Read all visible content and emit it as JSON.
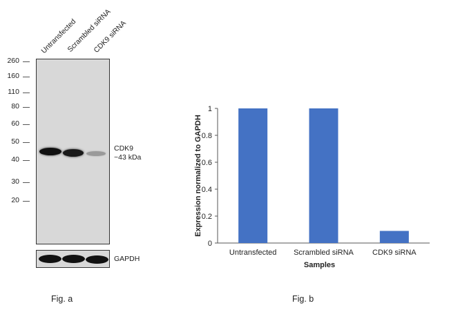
{
  "western_blot": {
    "lanes": [
      "Untransfected",
      "Scrambled siRNA",
      "CDK9 siRNA"
    ],
    "mw_markers": [
      "260",
      "160",
      "110",
      "80",
      "60",
      "50",
      "40",
      "30",
      "20"
    ],
    "target_label": "CDK9",
    "target_size": "~43 kDa",
    "loading_control_label": "GAPDH",
    "caption": "Fig. a"
  },
  "chart_data": {
    "type": "bar",
    "categories": [
      "Untransfected",
      "Scrambled siRNA",
      "CDK9 siRNA"
    ],
    "values": [
      1.0,
      1.0,
      0.09
    ],
    "xlabel": "Samples",
    "ylabel": "Expression normalized to GAPDH",
    "ylim": [
      0,
      1
    ],
    "yticks": [
      "0",
      "0.2",
      "0.4",
      "0.6",
      "0.8",
      "1"
    ],
    "bar_color": "#4472c4",
    "grid": false
  },
  "chart_caption": "Fig. b"
}
